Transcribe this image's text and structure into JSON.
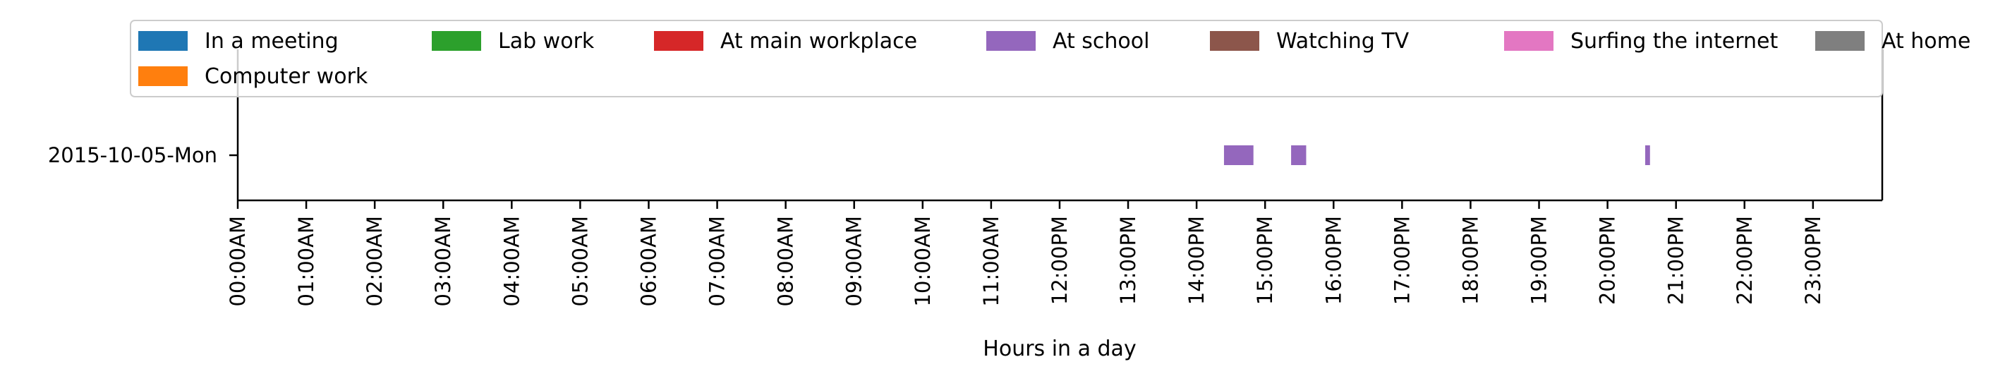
{
  "chart_data": {
    "type": "gantt",
    "title": "",
    "xlabel": "Hours in a day",
    "ylabel": "",
    "xlim_hours": [
      0,
      24
    ],
    "x_ticks": [
      "00:00AM",
      "01:00AM",
      "02:00AM",
      "03:00AM",
      "04:00AM",
      "05:00AM",
      "06:00AM",
      "07:00AM",
      "08:00AM",
      "09:00AM",
      "10:00AM",
      "11:00AM",
      "12:00PM",
      "13:00PM",
      "14:00PM",
      "15:00PM",
      "16:00PM",
      "17:00PM",
      "18:00PM",
      "19:00PM",
      "20:00PM",
      "21:00PM",
      "22:00PM",
      "23:00PM"
    ],
    "rows": [
      "2015-10-05-Mon"
    ],
    "legend_position": "top",
    "legend": [
      {
        "label": "In a meeting",
        "color": "#1f77b4"
      },
      {
        "label": "Lab work",
        "color": "#2ca02c"
      },
      {
        "label": "At main workplace",
        "color": "#d62728"
      },
      {
        "label": "At school",
        "color": "#9467bd"
      },
      {
        "label": "Watching TV",
        "color": "#8c564b"
      },
      {
        "label": "Surfing the internet",
        "color": "#e377c2"
      },
      {
        "label": "At home",
        "color": "#7f7f7f"
      },
      {
        "label": "Computer work",
        "color": "#ff7f0e"
      }
    ],
    "segments": [
      {
        "row": "2015-10-05-Mon",
        "activity": "At school",
        "start_hour": 14.4,
        "end_hour": 14.83
      },
      {
        "row": "2015-10-05-Mon",
        "activity": "At school",
        "start_hour": 15.38,
        "end_hour": 15.6
      },
      {
        "row": "2015-10-05-Mon",
        "activity": "At school",
        "start_hour": 20.55,
        "end_hour": 20.62
      }
    ]
  }
}
